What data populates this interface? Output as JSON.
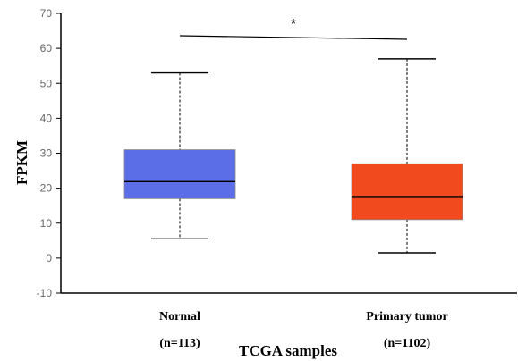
{
  "chart_data": {
    "type": "box",
    "xlabel": "TCGA samples",
    "ylabel": "FPKM",
    "ylim": [
      -10,
      70
    ],
    "yticks": [
      -10,
      0,
      10,
      20,
      30,
      40,
      50,
      60,
      70
    ],
    "grid": false,
    "legend": "none",
    "annotation": "*",
    "boxes": [
      {
        "category": "Normal",
        "count_label": "(n=113)",
        "color": "#5b6ee8",
        "min": 5.5,
        "q1": 17,
        "median": 22,
        "q3": 31,
        "max": 53
      },
      {
        "category": "Primary tumor",
        "count_label": "(n=1102)",
        "color": "#f24a1f",
        "min": 1.5,
        "q1": 11,
        "median": 17.5,
        "q3": 27,
        "max": 57
      }
    ]
  }
}
